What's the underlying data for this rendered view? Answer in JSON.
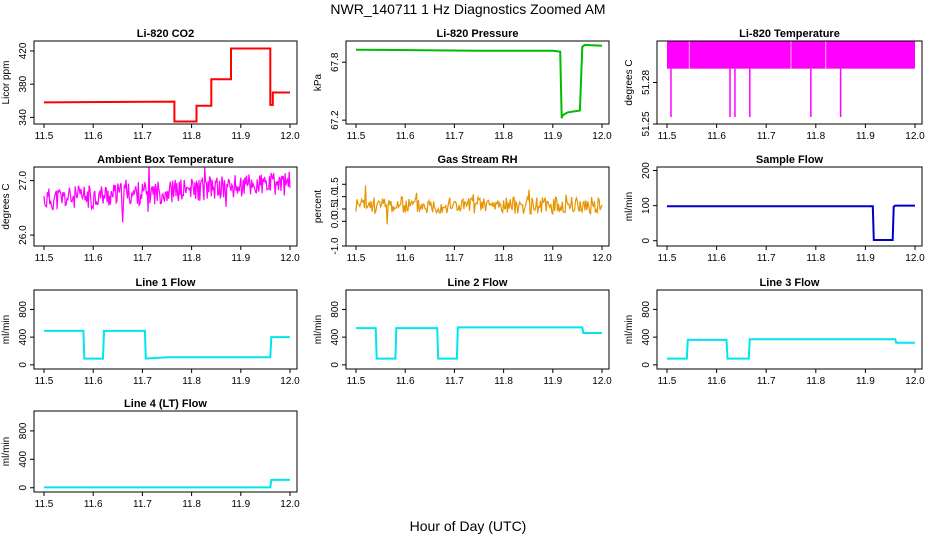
{
  "figure": {
    "title": "NWR_140711  1 Hz Diagnostics Zoomed AM",
    "xlabel": "Hour of Day (UTC)"
  },
  "chart_data": [
    {
      "type": "line",
      "title": "Li-820 CO2",
      "ylabel": "Licor ppm",
      "color": "#ff0000",
      "xlim": [
        11.5,
        12.0
      ],
      "ylim": [
        332,
        432
      ],
      "xticks": [
        "11.5",
        "11.6",
        "11.7",
        "11.8",
        "11.9",
        "12.0"
      ],
      "yticks": [
        "340",
        "380",
        "420"
      ],
      "series": [
        {
          "x": [
            11.5,
            11.765,
            11.765,
            11.81,
            11.81,
            11.84,
            11.84,
            11.88,
            11.88,
            11.96,
            11.96,
            11.965,
            11.965,
            12.0
          ],
          "y": [
            358,
            359,
            335,
            335,
            354,
            354,
            386,
            386,
            423,
            423,
            355,
            355,
            370,
            370
          ]
        }
      ]
    },
    {
      "type": "line",
      "title": "Li-820 Pressure",
      "ylabel": "kPa",
      "color": "#00bb00",
      "xlim": [
        11.5,
        12.0
      ],
      "ylim": [
        67.16,
        68.02
      ],
      "xticks": [
        "11.5",
        "11.6",
        "11.7",
        "11.8",
        "11.9",
        "12.0"
      ],
      "yticks": [
        "67.2",
        "67.8"
      ],
      "series": [
        {
          "x": [
            11.5,
            11.75,
            11.9,
            11.915,
            11.918,
            11.92,
            11.93,
            11.955,
            11.96,
            11.965,
            12.0
          ],
          "y": [
            67.93,
            67.92,
            67.92,
            67.91,
            67.22,
            67.25,
            67.28,
            67.3,
            67.96,
            67.98,
            67.97
          ]
        }
      ]
    },
    {
      "type": "line",
      "title": "Li-820 Temperature",
      "ylabel": "degrees C",
      "color": "#ff00ff",
      "xlim": [
        11.5,
        12.0
      ],
      "ylim": [
        51.25,
        51.31
      ],
      "xticks": [
        "11.5",
        "11.6",
        "11.7",
        "11.8",
        "11.9",
        "12.0"
      ],
      "yticks": [
        "51.25",
        "51.28"
      ],
      "band": [
        51.29,
        51.31
      ],
      "dips": [
        {
          "x": 11.508,
          "y": 51.255
        },
        {
          "x": 11.627,
          "y": 51.255
        },
        {
          "x": 11.637,
          "y": 51.255
        },
        {
          "x": 11.667,
          "y": 51.255
        },
        {
          "x": 11.79,
          "y": 51.255
        },
        {
          "x": 11.85,
          "y": 51.255
        }
      ]
    },
    {
      "type": "line",
      "title": "Ambient Box Temperature",
      "ylabel": "degrees C",
      "color": "#ff00ff",
      "xlim": [
        11.5,
        12.0
      ],
      "ylim": [
        25.8,
        27.25
      ],
      "xticks": [
        "11.5",
        "11.6",
        "11.7",
        "11.8",
        "11.9",
        "12.0"
      ],
      "yticks": [
        "26.0",
        "27.0"
      ],
      "noise": {
        "center": 26.85,
        "spread": 0.22,
        "start": 26.65,
        "end": 26.95,
        "count": 300,
        "seed": 11
      }
    },
    {
      "type": "line",
      "title": "Gas Stream RH",
      "ylabel": "percent",
      "color": "#e69500",
      "xlim": [
        11.5,
        12.0
      ],
      "ylim": [
        -1.0,
        2.2
      ],
      "xticks": [
        "11.5",
        "11.6",
        "11.7",
        "11.8",
        "11.9",
        "12.0"
      ],
      "yticks": [
        "-1.0",
        "0.0",
        "0.5",
        "1.0",
        "1.5"
      ],
      "noise": {
        "center": 0.65,
        "spread": 0.35,
        "start": 0.65,
        "end": 0.65,
        "count": 260,
        "seed": 23
      }
    },
    {
      "type": "line",
      "title": "Sample Flow",
      "ylabel": "ml/min",
      "color": "#0000cc",
      "xlim": [
        11.5,
        12.0
      ],
      "ylim": [
        -15,
        210
      ],
      "xticks": [
        "11.5",
        "11.6",
        "11.7",
        "11.8",
        "11.9",
        "12.0"
      ],
      "yticks": [
        "0",
        "100",
        "200"
      ],
      "series": [
        {
          "x": [
            11.5,
            11.915,
            11.917,
            11.955,
            11.957,
            11.96,
            12.0
          ],
          "y": [
            98,
            98,
            2,
            2,
            97,
            100,
            100
          ]
        }
      ]
    },
    {
      "type": "line",
      "title": "Line 1 Flow",
      "ylabel": "ml/min",
      "color": "#00e5ee",
      "xlim": [
        11.5,
        12.0
      ],
      "ylim": [
        -60,
        1080
      ],
      "xticks": [
        "11.5",
        "11.6",
        "11.7",
        "11.8",
        "11.9",
        "12.0"
      ],
      "yticks": [
        "0",
        "400",
        "800"
      ],
      "series": [
        {
          "x": [
            11.5,
            11.58,
            11.582,
            11.62,
            11.622,
            11.705,
            11.707,
            11.75,
            11.96,
            11.962,
            12.0
          ],
          "y": [
            490,
            490,
            90,
            90,
            490,
            490,
            90,
            110,
            110,
            400,
            400
          ]
        }
      ]
    },
    {
      "type": "line",
      "title": "Line 2 Flow",
      "ylabel": "ml/min",
      "color": "#00e5ee",
      "xlim": [
        11.5,
        12.0
      ],
      "ylim": [
        -60,
        1080
      ],
      "xticks": [
        "11.5",
        "11.6",
        "11.7",
        "11.8",
        "11.9",
        "12.0"
      ],
      "yticks": [
        "0",
        "400",
        "800"
      ],
      "series": [
        {
          "x": [
            11.5,
            11.54,
            11.542,
            11.58,
            11.582,
            11.665,
            11.667,
            11.705,
            11.707,
            11.96,
            11.962,
            12.0
          ],
          "y": [
            530,
            530,
            90,
            90,
            530,
            530,
            90,
            90,
            540,
            540,
            460,
            460
          ]
        }
      ]
    },
    {
      "type": "line",
      "title": "Line 3 Flow",
      "ylabel": "ml/min",
      "color": "#00e5ee",
      "xlim": [
        11.5,
        12.0
      ],
      "ylim": [
        -60,
        1080
      ],
      "xticks": [
        "11.5",
        "11.6",
        "11.7",
        "11.8",
        "11.9",
        "12.0"
      ],
      "yticks": [
        "0",
        "400",
        "800"
      ],
      "series": [
        {
          "x": [
            11.5,
            11.54,
            11.542,
            11.62,
            11.622,
            11.665,
            11.667,
            11.96,
            11.962,
            12.0
          ],
          "y": [
            90,
            90,
            360,
            360,
            90,
            90,
            370,
            370,
            320,
            320
          ]
        }
      ]
    },
    {
      "type": "line",
      "title": "Line 4 (LT) Flow",
      "ylabel": "ml/min",
      "color": "#00e5ee",
      "xlim": [
        11.5,
        12.0
      ],
      "ylim": [
        -60,
        1080
      ],
      "xticks": [
        "11.5",
        "11.6",
        "11.7",
        "11.8",
        "11.9",
        "12.0"
      ],
      "yticks": [
        "0",
        "400",
        "800"
      ],
      "series": [
        {
          "x": [
            11.5,
            11.96,
            11.962,
            12.0
          ],
          "y": [
            5,
            5,
            110,
            110
          ]
        }
      ]
    }
  ]
}
